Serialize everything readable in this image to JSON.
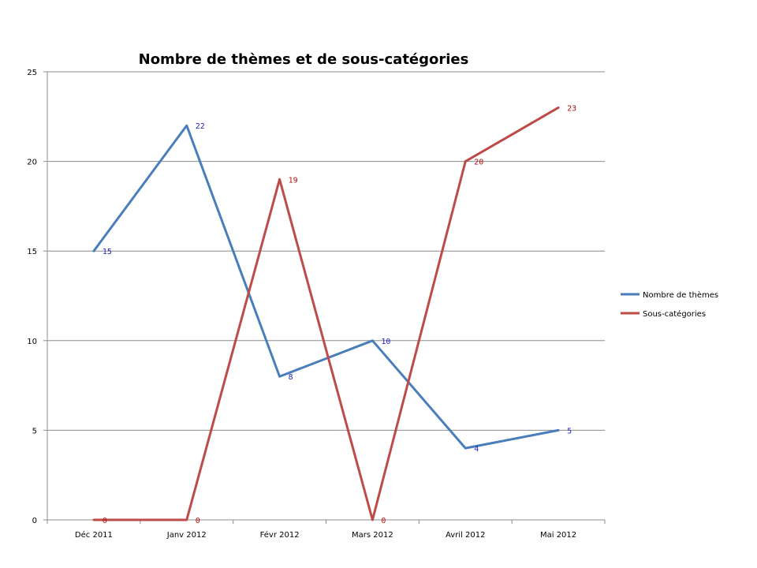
{
  "chart_data": {
    "type": "line",
    "title": "Nombre de thèmes et de sous-catégories",
    "categories": [
      "Déc 2011",
      "Janv 2012",
      "Févr 2012",
      "Mars 2012",
      "Avril 2012",
      "Mai 2012"
    ],
    "ylim": [
      0,
      25
    ],
    "yticks": [
      "0",
      "5",
      "10",
      "15",
      "20",
      "25"
    ],
    "grid": true,
    "legend": "right",
    "series": [
      {
        "name": "Nombre de thèmes",
        "color": "#4a7ebb",
        "label_color": "#1f1fbf",
        "values": [
          15,
          22,
          8,
          10,
          4,
          5
        ]
      },
      {
        "name": "Sous-catégories",
        "color": "#be4b48",
        "label_color": "#b01010",
        "values": [
          0,
          0,
          19,
          0,
          20,
          23
        ]
      }
    ]
  }
}
